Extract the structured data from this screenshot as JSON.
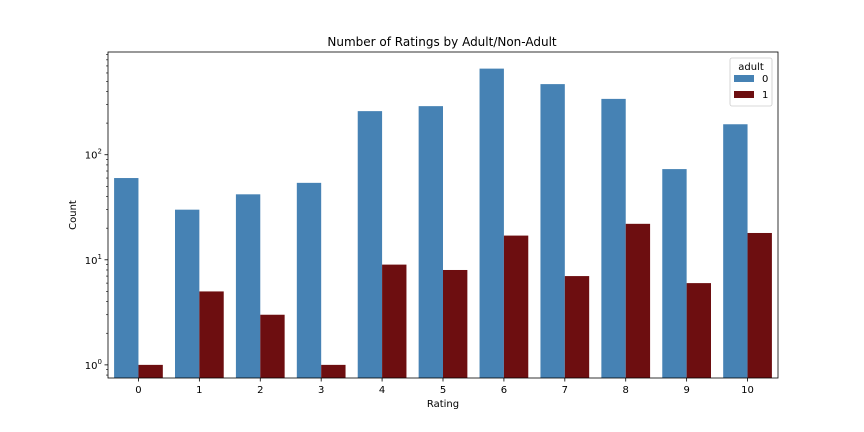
{
  "chart_data": {
    "type": "bar",
    "title": "Number of Ratings by Adult/Non-Adult",
    "xlabel": "Rating",
    "ylabel": "Count",
    "yscale": "log",
    "ylim": [
      0.75,
      950
    ],
    "yticks": [
      {
        "value": 1,
        "base": "10",
        "exp": "0"
      },
      {
        "value": 10,
        "base": "10",
        "exp": "1"
      },
      {
        "value": 100,
        "base": "10",
        "exp": "2"
      }
    ],
    "categories": [
      "0",
      "1",
      "2",
      "3",
      "4",
      "5",
      "6",
      "7",
      "8",
      "9",
      "10"
    ],
    "legend": {
      "title": "adult",
      "position": "top-right"
    },
    "series": [
      {
        "name": "0",
        "color": "#4682b4",
        "values": [
          60,
          30,
          42,
          54,
          260,
          290,
          660,
          470,
          340,
          73,
          195
        ]
      },
      {
        "name": "1",
        "color": "#6d0e10",
        "values": [
          1,
          5,
          3,
          1,
          9,
          8,
          17,
          7,
          22,
          6,
          18
        ]
      }
    ]
  }
}
